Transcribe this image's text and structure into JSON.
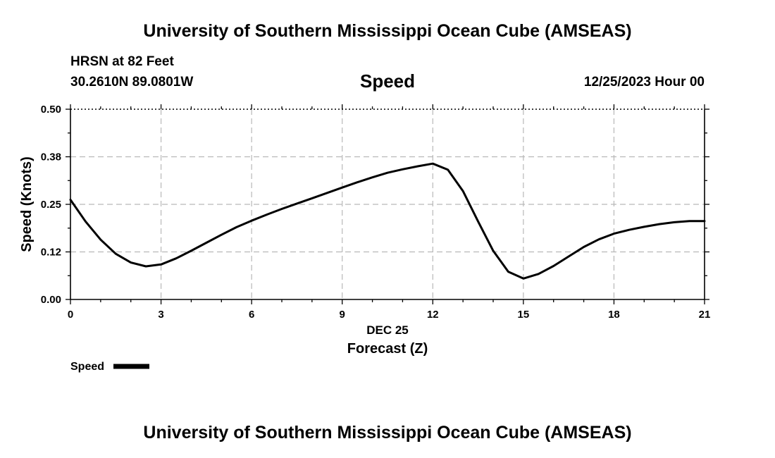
{
  "header": {
    "title": "University of Southern Mississippi Ocean Cube (AMSEAS)",
    "station": "HRSN at 82 Feet",
    "coords": "30.2610N  89.0801W",
    "chart_title": "Speed",
    "datetime": "12/25/2023 Hour 00"
  },
  "footer": {
    "title": "University of Southern Mississippi Ocean Cube (AMSEAS)"
  },
  "legend": {
    "label": "Speed"
  },
  "chart_data": {
    "type": "line",
    "title": "Speed",
    "xlabel": "Forecast (Z)",
    "xsublabel": "DEC 25",
    "ylabel": "Speed (Knots)",
    "xlim": [
      0,
      21
    ],
    "ylim": [
      0,
      0.5
    ],
    "xticks": [
      0,
      3,
      6,
      9,
      12,
      15,
      18,
      21
    ],
    "xtick_labels": [
      "0",
      "3",
      "6",
      "9",
      "12",
      "15",
      "18",
      "21"
    ],
    "yticks": [
      0,
      0.125,
      0.25,
      0.375,
      0.5
    ],
    "ytick_labels": [
      "0.00",
      "0.12",
      "0.25",
      "0.38",
      "0.50"
    ],
    "grid": true,
    "legend_position": "bottom-left",
    "series": [
      {
        "name": "Speed",
        "color": "#000000",
        "x": [
          0,
          0.5,
          1,
          1.5,
          2,
          2.5,
          3,
          3.5,
          4,
          4.5,
          5,
          5.5,
          6,
          6.5,
          7,
          7.5,
          8,
          8.5,
          9,
          9.5,
          10,
          10.5,
          11,
          11.5,
          12,
          12.5,
          13,
          13.5,
          14,
          14.5,
          15,
          15.5,
          16,
          16.5,
          17,
          17.5,
          18,
          18.5,
          19,
          19.5,
          20,
          20.5,
          21
        ],
        "values": [
          0.262,
          0.205,
          0.157,
          0.12,
          0.097,
          0.087,
          0.092,
          0.108,
          0.128,
          0.149,
          0.17,
          0.19,
          0.207,
          0.223,
          0.238,
          0.252,
          0.266,
          0.28,
          0.294,
          0.308,
          0.321,
          0.333,
          0.342,
          0.35,
          0.357,
          0.341,
          0.285,
          0.205,
          0.128,
          0.073,
          0.055,
          0.067,
          0.088,
          0.113,
          0.138,
          0.158,
          0.173,
          0.183,
          0.191,
          0.198,
          0.203,
          0.206,
          0.206
        ]
      }
    ]
  }
}
